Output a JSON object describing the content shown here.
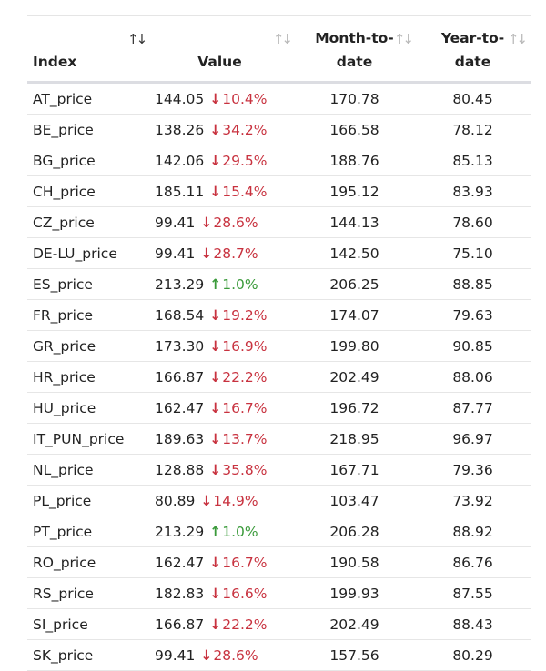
{
  "headers": {
    "index": "Index",
    "value": "Value",
    "mtd_line1": "Month-to-",
    "mtd_line2": "date",
    "ytd_line1": "Year-to-",
    "ytd_line2": "date",
    "sort_active_icon": "↑↓",
    "sort_inactive_icon": "↑↓"
  },
  "colors": {
    "down": "#c8323f",
    "up": "#3a9a3a"
  },
  "rows": [
    {
      "index": "AT_price",
      "value": "144.05",
      "dir": "down",
      "arrow": "↓",
      "change": "10.4%",
      "mtd": "170.78",
      "ytd": "80.45"
    },
    {
      "index": "BE_price",
      "value": "138.26",
      "dir": "down",
      "arrow": "↓",
      "change": "34.2%",
      "mtd": "166.58",
      "ytd": "78.12"
    },
    {
      "index": "BG_price",
      "value": "142.06",
      "dir": "down",
      "arrow": "↓",
      "change": "29.5%",
      "mtd": "188.76",
      "ytd": "85.13"
    },
    {
      "index": "CH_price",
      "value": "185.11",
      "dir": "down",
      "arrow": "↓",
      "change": "15.4%",
      "mtd": "195.12",
      "ytd": "83.93"
    },
    {
      "index": "CZ_price",
      "value": "99.41",
      "dir": "down",
      "arrow": "↓",
      "change": "28.6%",
      "mtd": "144.13",
      "ytd": "78.60"
    },
    {
      "index": "DE-LU_price",
      "value": "99.41",
      "dir": "down",
      "arrow": "↓",
      "change": "28.7%",
      "mtd": "142.50",
      "ytd": "75.10"
    },
    {
      "index": "ES_price",
      "value": "213.29",
      "dir": "up",
      "arrow": "↑",
      "change": "1.0%",
      "mtd": "206.25",
      "ytd": "88.85"
    },
    {
      "index": "FR_price",
      "value": "168.54",
      "dir": "down",
      "arrow": "↓",
      "change": "19.2%",
      "mtd": "174.07",
      "ytd": "79.63"
    },
    {
      "index": "GR_price",
      "value": "173.30",
      "dir": "down",
      "arrow": "↓",
      "change": "16.9%",
      "mtd": "199.80",
      "ytd": "90.85"
    },
    {
      "index": "HR_price",
      "value": "166.87",
      "dir": "down",
      "arrow": "↓",
      "change": "22.2%",
      "mtd": "202.49",
      "ytd": "88.06"
    },
    {
      "index": "HU_price",
      "value": "162.47",
      "dir": "down",
      "arrow": "↓",
      "change": "16.7%",
      "mtd": "196.72",
      "ytd": "87.77"
    },
    {
      "index": "IT_PUN_price",
      "value": "189.63",
      "dir": "down",
      "arrow": "↓",
      "change": "13.7%",
      "mtd": "218.95",
      "ytd": "96.97"
    },
    {
      "index": "NL_price",
      "value": "128.88",
      "dir": "down",
      "arrow": "↓",
      "change": "35.8%",
      "mtd": "167.71",
      "ytd": "79.36"
    },
    {
      "index": "PL_price",
      "value": "80.89",
      "dir": "down",
      "arrow": "↓",
      "change": "14.9%",
      "mtd": "103.47",
      "ytd": "73.92"
    },
    {
      "index": "PT_price",
      "value": "213.29",
      "dir": "up",
      "arrow": "↑",
      "change": "1.0%",
      "mtd": "206.28",
      "ytd": "88.92"
    },
    {
      "index": "RO_price",
      "value": "162.47",
      "dir": "down",
      "arrow": "↓",
      "change": "16.7%",
      "mtd": "190.58",
      "ytd": "86.76"
    },
    {
      "index": "RS_price",
      "value": "182.83",
      "dir": "down",
      "arrow": "↓",
      "change": "16.6%",
      "mtd": "199.93",
      "ytd": "87.55"
    },
    {
      "index": "SI_price",
      "value": "166.87",
      "dir": "down",
      "arrow": "↓",
      "change": "22.2%",
      "mtd": "202.49",
      "ytd": "88.43"
    },
    {
      "index": "SK_price",
      "value": "99.41",
      "dir": "down",
      "arrow": "↓",
      "change": "28.6%",
      "mtd": "157.56",
      "ytd": "80.29"
    }
  ]
}
